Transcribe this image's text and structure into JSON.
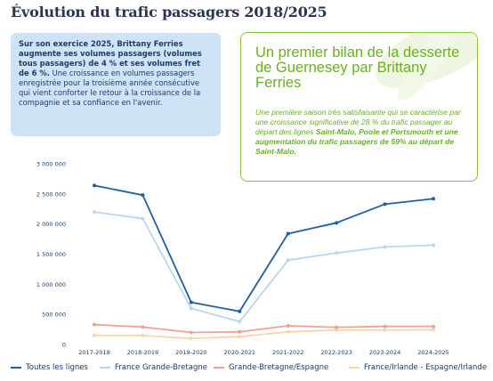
{
  "title": "Évolution du trafic passagers 2018/2025",
  "bluebox": {
    "part1": "Sur son exercice 2025, Brittany Ferries augmente ses volumes passagers (volumes tous passagers) de 4 % et ses volumes fret de 6 %.",
    "part2": " Une croissance en volumes passagers enregistrée pour la troisième année consécutive qui vient conforter le retour à la croissance de la compagnie et sa confiance en l'avenir."
  },
  "greenbox": {
    "heading": "Un premier bilan de la desserte de Guernesey par Brittany Ferries",
    "t1": "Une première saison très satisfaisante qui se caractérise par une croissance significative de 28 % du trafic passager au départ des lignes ",
    "t2": "Saint-Malo, Poole et Portsmouth et une augmentation du trafic passagers de 59% au départ de Saint-Malo.",
    "accent": "#8cc63f"
  },
  "chart_data": {
    "type": "line",
    "categories": [
      "2017-2018",
      "2018-2019",
      "2019-2020",
      "2020-2021",
      "2021-2022",
      "2022-2023",
      "2023-2024",
      "2024-2025"
    ],
    "ylim": [
      0,
      3000000
    ],
    "yticks": [
      0,
      500000,
      1000000,
      1500000,
      2000000,
      2500000,
      3000000
    ],
    "ytick_labels": [
      "0",
      "500 000",
      "1 000 000",
      "1 500 000",
      "2 000 000",
      "2 500 000",
      "3 000 000"
    ],
    "grid": false,
    "legend_placement": "bottom",
    "series": [
      {
        "name": "Toutes les lignes",
        "color": "#1f5fa0",
        "markers": true,
        "values": [
          2640000,
          2480000,
          700000,
          550000,
          1840000,
          2020000,
          2330000,
          2420000
        ]
      },
      {
        "name": "France Grande-Bretagne",
        "color": "#b9d6ef",
        "markers": true,
        "values": [
          2200000,
          2090000,
          600000,
          380000,
          1400000,
          1520000,
          1620000,
          1650000
        ]
      },
      {
        "name": "Grande-Bretagne/Espagne",
        "color": "#f2a08f",
        "markers": true,
        "values": [
          330000,
          290000,
          200000,
          210000,
          310000,
          285000,
          300000,
          300000
        ]
      },
      {
        "name": "France/Irlande - Espagne/Irlande",
        "color": "#f6d4ad",
        "markers": true,
        "values": [
          150000,
          150000,
          100000,
          130000,
          210000,
          240000,
          240000,
          245000
        ]
      }
    ]
  }
}
